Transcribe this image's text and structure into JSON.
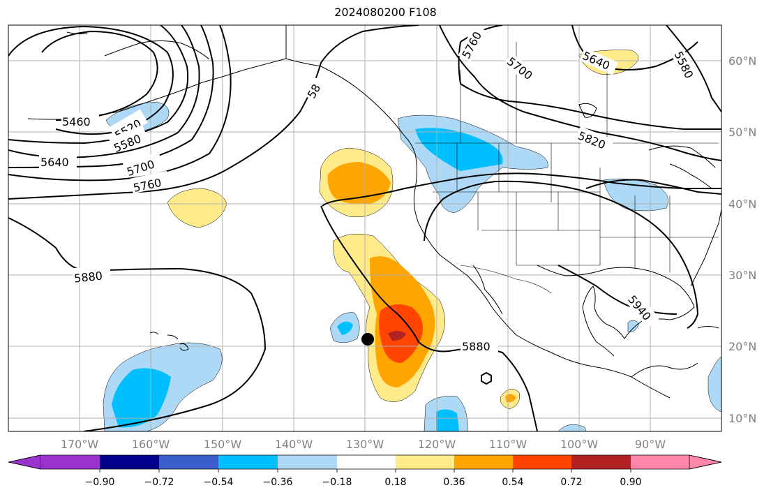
{
  "title": "2024080200 F108",
  "map": {
    "lon_labels": [
      "170°W",
      "160°W",
      "150°W",
      "140°W",
      "130°W",
      "120°W",
      "110°W",
      "100°W",
      "90°W"
    ],
    "lat_labels": [
      "60°N",
      "50°N",
      "40°N",
      "30°N",
      "20°N",
      "10°N"
    ],
    "contour_labels": [
      "5460",
      "5520",
      "5580",
      "5640",
      "5700",
      "5760",
      "5880",
      "5880",
      "5820",
      "5940",
      "5760",
      "5700",
      "5640",
      "5580",
      "58"
    ],
    "marker": {
      "type": "storm-center-dot",
      "lon": -130,
      "lat": 21
    },
    "tropical_symbol": {
      "lon": -113,
      "lat": 15.5
    }
  },
  "colorbar": {
    "tick_labels": [
      "−0.90",
      "−0.72",
      "−0.54",
      "−0.36",
      "−0.18",
      "0.18",
      "0.36",
      "0.54",
      "0.72",
      "0.90"
    ],
    "colors": [
      "#9933cc",
      "#00008b",
      "#3a5fcd",
      "#00bfff",
      "#add8f6",
      "#ffffff",
      "#ffeb8a",
      "#ffa500",
      "#ff4500",
      "#b22222",
      "#ff88aa"
    ]
  }
}
